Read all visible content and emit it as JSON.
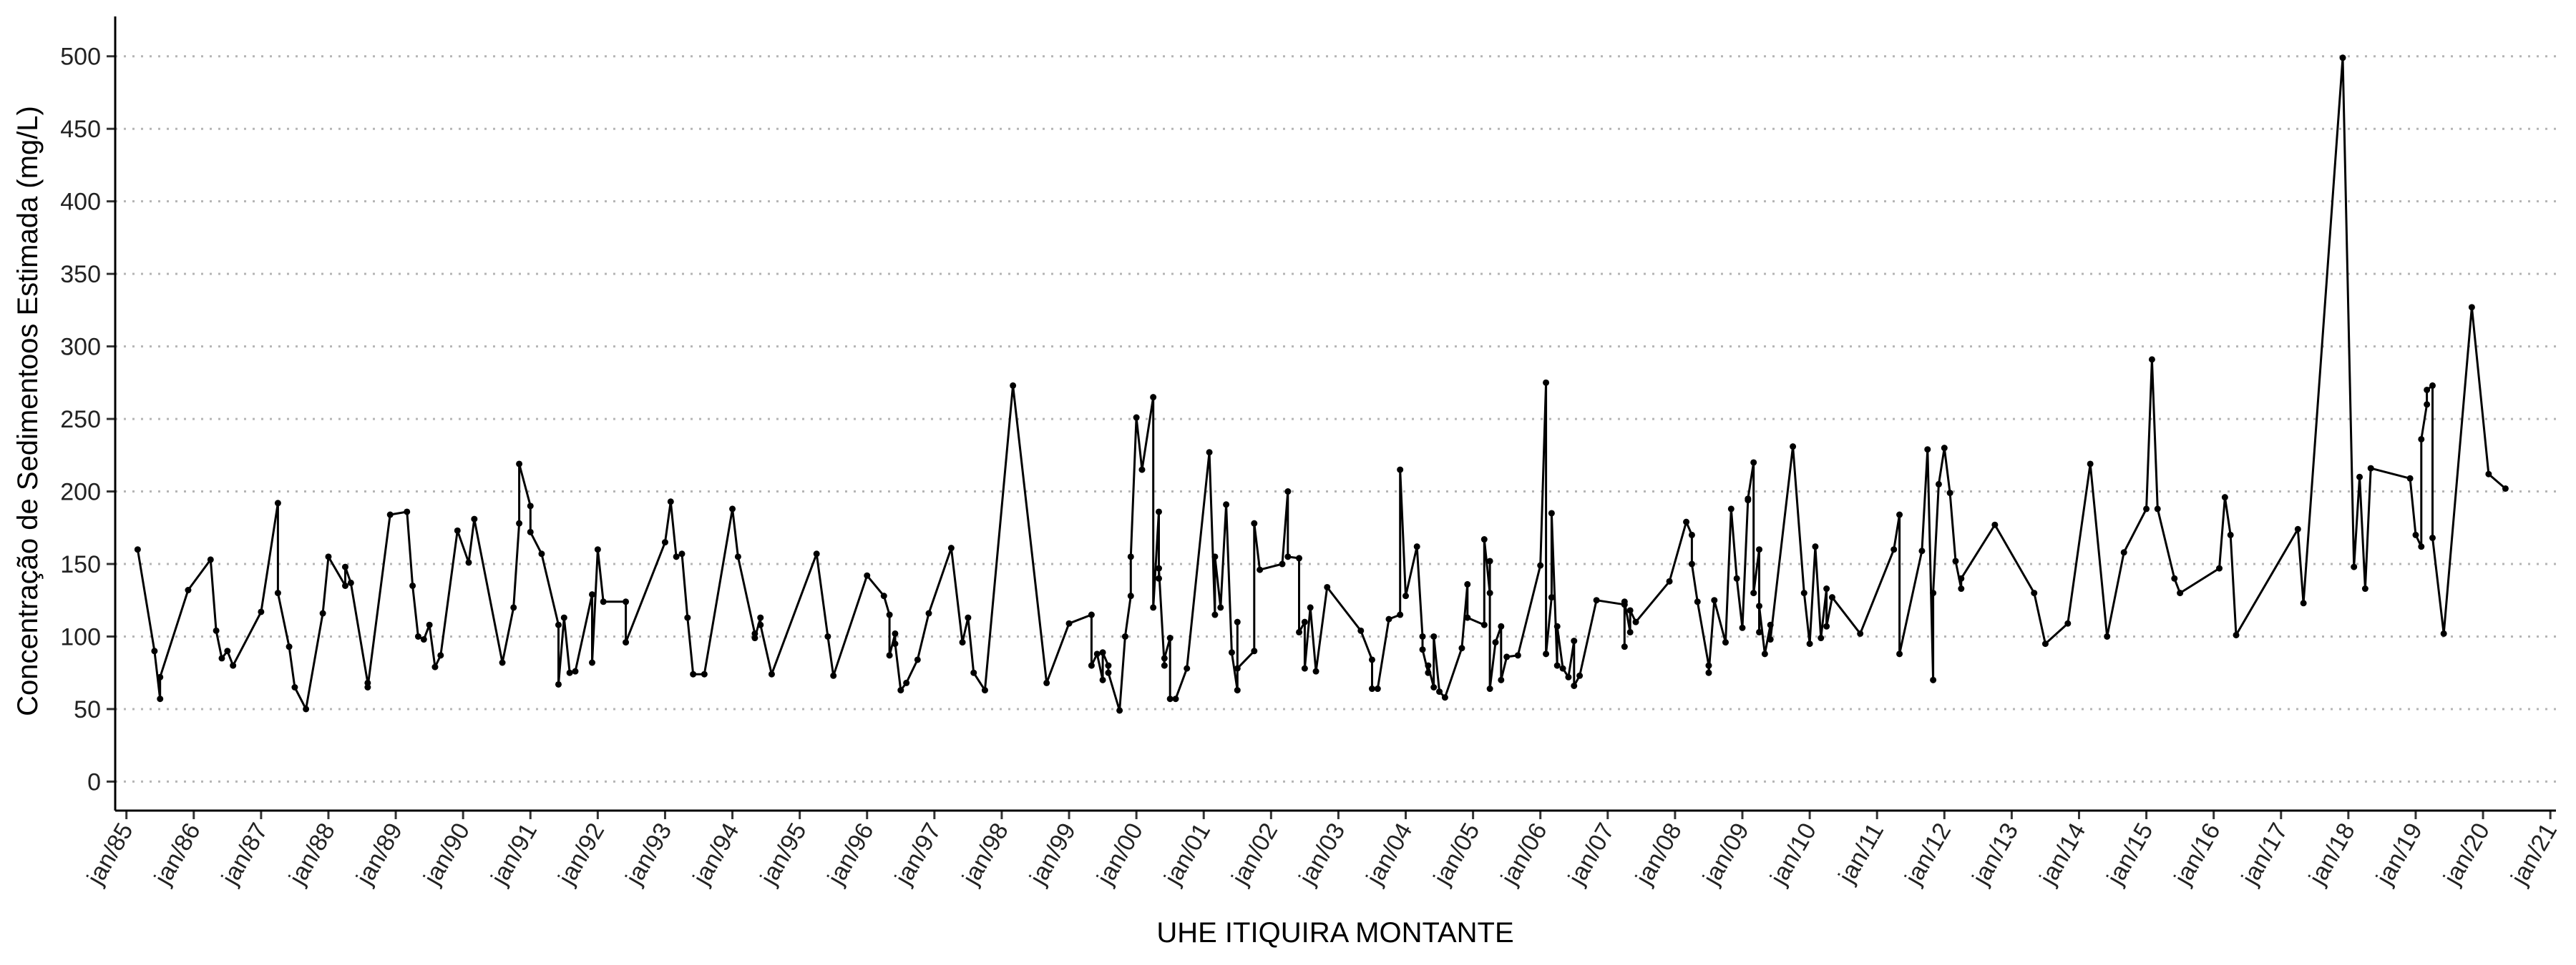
{
  "chart_data": {
    "type": "line",
    "x_label": "UHE ITIQUIRA MONTANTE",
    "y_label": "Concentração de Sedimentoos Estimada (mg/L)",
    "color": "#000000",
    "grid": true,
    "x": [
      "1985-03",
      "1985-06",
      "1985-07",
      "1985-07",
      "1985-12",
      "1986-04",
      "1986-05",
      "1986-06",
      "1986-07",
      "1986-08",
      "1987-01",
      "1987-04",
      "1987-04",
      "1987-06",
      "1987-07",
      "1987-09",
      "1987-12",
      "1988-01",
      "1988-04",
      "1988-04",
      "1988-05",
      "1988-08",
      "1988-08",
      "1988-12",
      "1989-03",
      "1989-04",
      "1989-05",
      "1989-06",
      "1989-07",
      "1989-08",
      "1989-09",
      "1989-12",
      "1990-02",
      "1990-03",
      "1990-08",
      "1990-10",
      "1990-11",
      "1990-11",
      "1991-01",
      "1991-01",
      "1991-03",
      "1991-06",
      "1991-06",
      "1991-07",
      "1991-08",
      "1991-09",
      "1991-12",
      "1991-12",
      "1992-01",
      "1992-02",
      "1992-06",
      "1992-06",
      "1993-01",
      "1993-02",
      "1993-03",
      "1993-04",
      "1993-05",
      "1993-06",
      "1993-08",
      "1994-01",
      "1994-02",
      "1994-05",
      "1994-05",
      "1994-06",
      "1994-06",
      "1994-08",
      "1995-04",
      "1995-06",
      "1995-07",
      "1996-01",
      "1996-04",
      "1996-05",
      "1996-05",
      "1996-06",
      "1996-06",
      "1996-07",
      "1996-08",
      "1996-10",
      "1996-12",
      "1997-04",
      "1997-06",
      "1997-07",
      "1997-08",
      "1997-10",
      "1998-03",
      "1998-09",
      "1999-01",
      "1999-05",
      "1999-05",
      "1999-06",
      "1999-07",
      "1999-07",
      "1999-08",
      "1999-08",
      "1999-10",
      "1999-11",
      "1999-12",
      "1999-12",
      "2000-01",
      "2000-02",
      "2000-04",
      "2000-04",
      "2000-05",
      "2000-05",
      "2000-05",
      "2000-06",
      "2000-06",
      "2000-07",
      "2000-07",
      "2000-08",
      "2000-10",
      "2001-02",
      "2001-03",
      "2001-03",
      "2001-04",
      "2001-05",
      "2001-06",
      "2001-07",
      "2001-07",
      "2001-07",
      "2001-10",
      "2001-10",
      "2001-11",
      "2002-03",
      "2002-04",
      "2002-04",
      "2002-06",
      "2002-06",
      "2002-07",
      "2002-07",
      "2002-08",
      "2002-09",
      "2002-11",
      "2003-05",
      "2003-07",
      "2003-07",
      "2003-08",
      "2003-10",
      "2003-12",
      "2003-12",
      "2004-01",
      "2004-03",
      "2004-04",
      "2004-04",
      "2004-05",
      "2004-05",
      "2004-06",
      "2004-06",
      "2004-07",
      "2004-08",
      "2004-11",
      "2004-12",
      "2004-12",
      "2005-03",
      "2005-03",
      "2005-04",
      "2005-04",
      "2005-04",
      "2005-05",
      "2005-06",
      "2005-06",
      "2005-07",
      "2005-09",
      "2006-01",
      "2006-02",
      "2006-02",
      "2006-03",
      "2006-03",
      "2006-04",
      "2006-04",
      "2006-05",
      "2006-06",
      "2006-07",
      "2006-07",
      "2006-08",
      "2006-11",
      "2007-04",
      "2007-04",
      "2007-04",
      "2007-05",
      "2007-05",
      "2007-06",
      "2007-12",
      "2008-03",
      "2008-04",
      "2008-04",
      "2008-05",
      "2008-07",
      "2008-07",
      "2008-08",
      "2008-10",
      "2008-11",
      "2008-12",
      "2009-01",
      "2009-02",
      "2009-02",
      "2009-03",
      "2009-03",
      "2009-04",
      "2009-04",
      "2009-04",
      "2009-05",
      "2009-06",
      "2009-06",
      "2009-10",
      "2009-12",
      "2010-01",
      "2010-02",
      "2010-03",
      "2010-04",
      "2010-04",
      "2010-05",
      "2010-10",
      "2011-04",
      "2011-05",
      "2011-05",
      "2011-09",
      "2011-10",
      "2011-11",
      "2011-11",
      "2011-12",
      "2012-01",
      "2012-02",
      "2012-03",
      "2012-04",
      "2012-04",
      "2012-10",
      "2013-05",
      "2013-07",
      "2013-11",
      "2014-03",
      "2014-06",
      "2014-09",
      "2015-01",
      "2015-02",
      "2015-03",
      "2015-06",
      "2015-07",
      "2016-02",
      "2016-03",
      "2016-04",
      "2016-05",
      "2017-04",
      "2017-05",
      "2017-12",
      "2018-02",
      "2018-03",
      "2018-04",
      "2018-05",
      "2018-12",
      "2019-01",
      "2019-02",
      "2019-02",
      "2019-03",
      "2019-03",
      "2019-04",
      "2019-04",
      "2019-06",
      "2019-11",
      "2020-02",
      "2020-05"
    ],
    "values": [
      160,
      90,
      57,
      72,
      132,
      153,
      104,
      85,
      90,
      80,
      117,
      192,
      130,
      93,
      65,
      50,
      116,
      155,
      135,
      148,
      137,
      68,
      65,
      184,
      186,
      135,
      100,
      98,
      108,
      79,
      87,
      173,
      151,
      181,
      82,
      120,
      178,
      219,
      190,
      172,
      157,
      108,
      67,
      113,
      75,
      76,
      129,
      82,
      160,
      124,
      124,
      96,
      165,
      193,
      155,
      157,
      113,
      74,
      74,
      188,
      155,
      102,
      99,
      113,
      108,
      74,
      157,
      100,
      73,
      142,
      128,
      115,
      87,
      102,
      95,
      63,
      68,
      84,
      116,
      161,
      96,
      113,
      75,
      63,
      273,
      68,
      109,
      115,
      80,
      88,
      70,
      89,
      80,
      75,
      49,
      100,
      128,
      155,
      251,
      215,
      265,
      120,
      186,
      140,
      147,
      80,
      85,
      99,
      57,
      57,
      78,
      227,
      115,
      155,
      120,
      191,
      89,
      63,
      110,
      78,
      90,
      178,
      146,
      150,
      200,
      155,
      154,
      103,
      110,
      78,
      120,
      76,
      134,
      104,
      84,
      64,
      64,
      112,
      115,
      215,
      128,
      162,
      100,
      91,
      75,
      80,
      65,
      100,
      62,
      58,
      92,
      136,
      113,
      108,
      167,
      130,
      152,
      64,
      96,
      107,
      70,
      86,
      87,
      149,
      275,
      88,
      127,
      185,
      80,
      107,
      78,
      72,
      97,
      66,
      73,
      125,
      122,
      93,
      124,
      103,
      118,
      110,
      138,
      179,
      170,
      150,
      124,
      80,
      75,
      125,
      96,
      188,
      140,
      106,
      194,
      195,
      220,
      130,
      160,
      103,
      121,
      88,
      108,
      98,
      231,
      130,
      95,
      162,
      99,
      133,
      107,
      127,
      102,
      160,
      184,
      88,
      159,
      229,
      70,
      130,
      205,
      230,
      199,
      152,
      133,
      140,
      177,
      130,
      95,
      109,
      219,
      100,
      158,
      188,
      291,
      188,
      140,
      130,
      147,
      196,
      170,
      101,
      174,
      123,
      499,
      148,
      210,
      133,
      216,
      209,
      170,
      162,
      236,
      260,
      270,
      273,
      168,
      102,
      327,
      212,
      202
    ],
    "xlim": [
      "1984-11",
      "2021-02"
    ],
    "xticks": [
      {
        "value": "1985-01",
        "label": "jan/85"
      },
      {
        "value": "1986-01",
        "label": "jan/86"
      },
      {
        "value": "1987-01",
        "label": "jan/87"
      },
      {
        "value": "1988-01",
        "label": "jan/88"
      },
      {
        "value": "1989-01",
        "label": "jan/89"
      },
      {
        "value": "1990-01",
        "label": "jan/90"
      },
      {
        "value": "1991-01",
        "label": "jan/91"
      },
      {
        "value": "1992-01",
        "label": "jan/92"
      },
      {
        "value": "1993-01",
        "label": "jan/93"
      },
      {
        "value": "1994-01",
        "label": "jan/94"
      },
      {
        "value": "1995-01",
        "label": "jan/95"
      },
      {
        "value": "1996-01",
        "label": "jan/96"
      },
      {
        "value": "1997-01",
        "label": "jan/97"
      },
      {
        "value": "1998-01",
        "label": "jan/98"
      },
      {
        "value": "1999-01",
        "label": "jan/99"
      },
      {
        "value": "2000-01",
        "label": "jan/00"
      },
      {
        "value": "2001-01",
        "label": "jan/01"
      },
      {
        "value": "2002-01",
        "label": "jan/02"
      },
      {
        "value": "2003-01",
        "label": "jan/03"
      },
      {
        "value": "2004-01",
        "label": "jan/04"
      },
      {
        "value": "2005-01",
        "label": "jan/05"
      },
      {
        "value": "2006-01",
        "label": "jan/06"
      },
      {
        "value": "2007-01",
        "label": "jan/07"
      },
      {
        "value": "2008-01",
        "label": "jan/08"
      },
      {
        "value": "2009-01",
        "label": "jan/09"
      },
      {
        "value": "2010-01",
        "label": "jan/10"
      },
      {
        "value": "2011-01",
        "label": "jan/11"
      },
      {
        "value": "2012-01",
        "label": "jan/12"
      },
      {
        "value": "2013-01",
        "label": "jan/13"
      },
      {
        "value": "2014-01",
        "label": "jan/14"
      },
      {
        "value": "2015-01",
        "label": "jan/15"
      },
      {
        "value": "2016-01",
        "label": "jan/16"
      },
      {
        "value": "2017-01",
        "label": "jan/17"
      },
      {
        "value": "2018-01",
        "label": "jan/18"
      },
      {
        "value": "2019-01",
        "label": "jan/19"
      },
      {
        "value": "2020-01",
        "label": "jan/20"
      },
      {
        "value": "2021-01",
        "label": "jan/21"
      }
    ],
    "ylim": [
      -20,
      525
    ],
    "yticks": [
      0,
      50,
      100,
      150,
      200,
      250,
      300,
      350,
      400,
      450,
      500
    ]
  }
}
